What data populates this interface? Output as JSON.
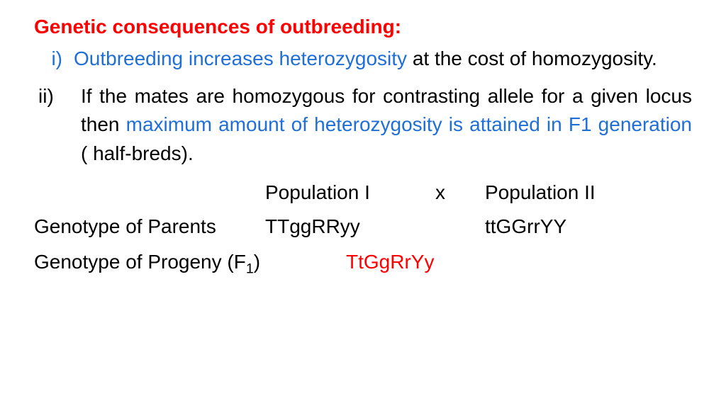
{
  "colors": {
    "red": "#ff0000",
    "blue": "#1f6fd6",
    "black": "#000000",
    "background": "#ffffff"
  },
  "title": "Genetic consequences of outbreeding:",
  "items": [
    {
      "marker": "i)",
      "blue_part": "Outbreeding increases heterozygosity",
      "black_part": " at the cost of homozygosity."
    },
    {
      "marker": "ii)",
      "pre_black": " If the mates are homozygous for contrasting allele for a given locus then ",
      "blue_part": "maximum amount of heterozygosity is attained in F1 generation",
      "post_black": " ( half-breds)."
    }
  ],
  "cross": {
    "pop1": "Population I",
    "x": "x",
    "pop2": "Population II"
  },
  "parents": {
    "label": "Genotype of Parents",
    "g1": "TTggRRyy",
    "g2": "ttGGrrYY"
  },
  "progeny": {
    "label_pre": "Genotype of Progeny (F",
    "label_sub": "1",
    "label_post": ")",
    "value": "TtGgRrYy"
  },
  "typography": {
    "title_fontsize": 28,
    "body_fontsize": 28,
    "font_family": "Comic Sans MS"
  }
}
